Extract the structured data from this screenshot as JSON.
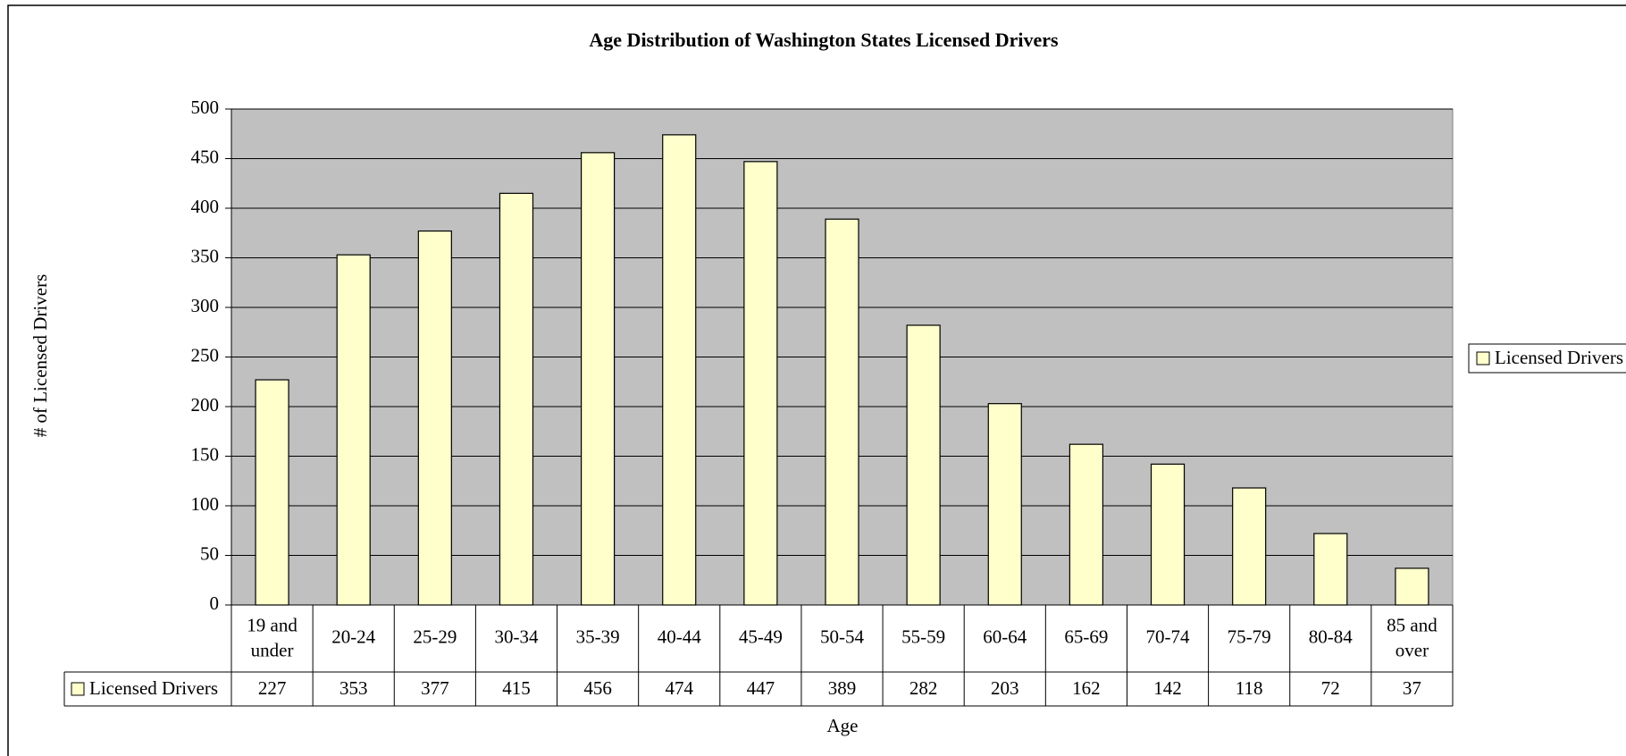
{
  "chart_data": {
    "type": "bar",
    "title": "Age Distribution of Washington States Licensed Drivers",
    "x_label": "Age",
    "y_label": "# of Licensed Drivers",
    "categories": [
      "19 and under",
      "20-24",
      "25-29",
      "30-34",
      "35-39",
      "40-44",
      "45-49",
      "50-54",
      "55-59",
      "60-64",
      "65-69",
      "70-74",
      "75-79",
      "80-84",
      "85 and over"
    ],
    "series": [
      {
        "name": "Licensed Drivers",
        "color": "#ffffcc",
        "values": [
          227,
          353,
          377,
          415,
          456,
          474,
          447,
          389,
          282,
          203,
          162,
          142,
          118,
          72,
          37
        ]
      }
    ],
    "ylim": [
      0,
      500
    ],
    "yticks": [
      0,
      50,
      100,
      150,
      200,
      250,
      300,
      350,
      400,
      450,
      500
    ],
    "grid": true,
    "legend": "right",
    "plot_background": "#c0c0c0"
  }
}
